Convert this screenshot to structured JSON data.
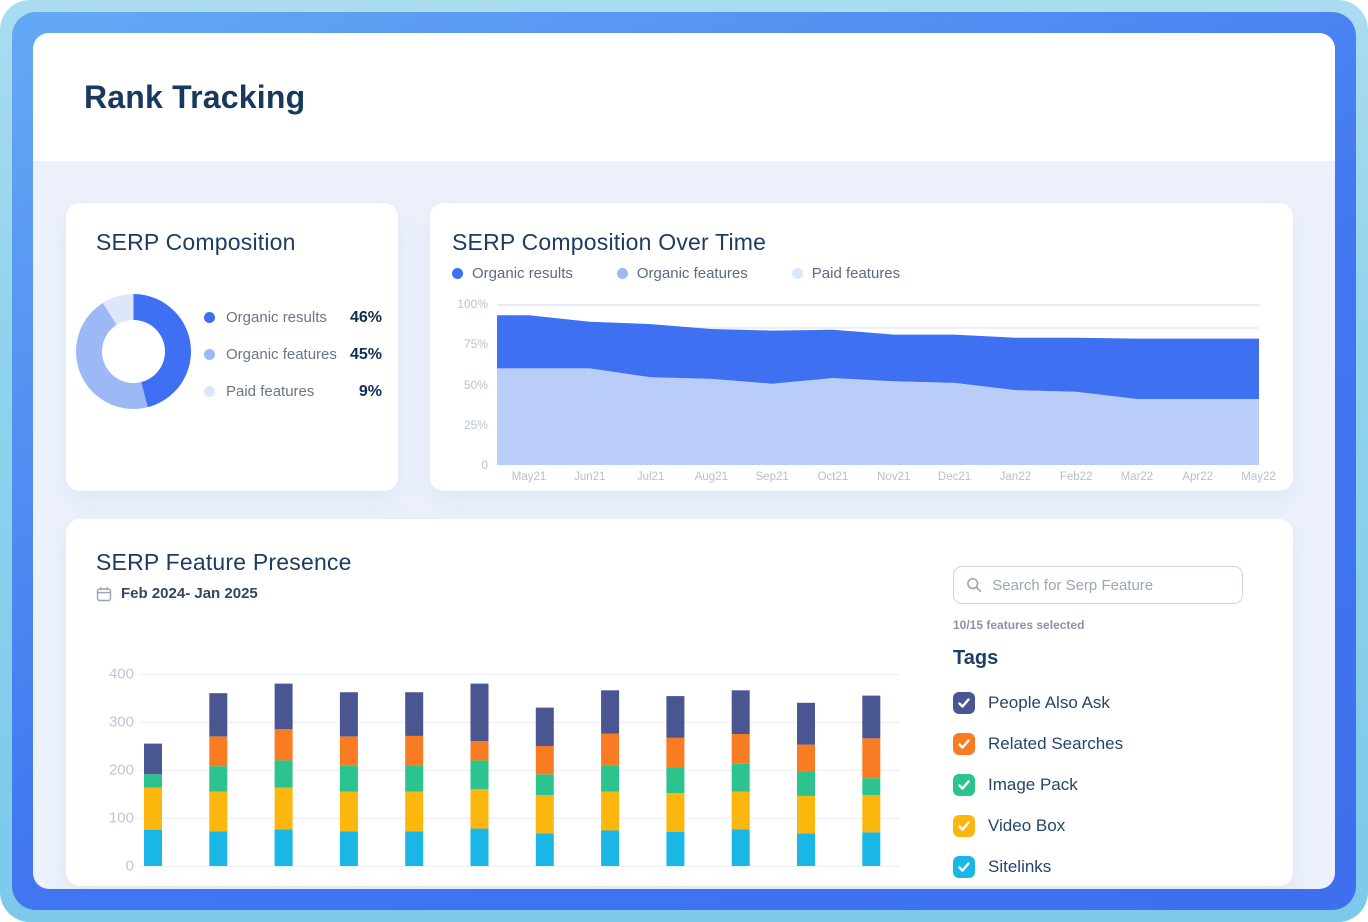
{
  "app": {
    "title": "Rank Tracking"
  },
  "serp_composition": {
    "title": "SERP Composition",
    "legend": [
      {
        "label": "Organic results",
        "value_label": "46%",
        "color": "#3f6ff2"
      },
      {
        "label": "Organic features",
        "value_label": "45%",
        "color": "#9cb9f6"
      },
      {
        "label": "Paid features",
        "value_label": "9%",
        "color": "#dce7fc"
      }
    ]
  },
  "over_time": {
    "title": "SERP Composition Over Time",
    "legend": [
      {
        "label": "Organic results",
        "color": "#3f6ff2"
      },
      {
        "label": "Organic features",
        "color": "#9cb9f6"
      },
      {
        "label": "Paid features",
        "color": "#dce7fc"
      }
    ]
  },
  "feature_presence": {
    "title": "SERP Feature Presence",
    "date_range": "Feb 2024- Jan 2025",
    "search_placeholder": "Search for Serp Feature",
    "selected_text": "10/15 features selected",
    "tags_title": "Tags",
    "tags": [
      {
        "label": "People Also Ask",
        "color": "#4a5691",
        "checked": true
      },
      {
        "label": "Related Searches",
        "color": "#f97b22",
        "checked": true
      },
      {
        "label": "Image Pack",
        "color": "#2cc48e",
        "checked": true
      },
      {
        "label": "Video Box",
        "color": "#fbb70d",
        "checked": true
      },
      {
        "label": "Sitelinks",
        "color": "#1ab7e6",
        "checked": true
      }
    ]
  },
  "chart_data": [
    {
      "type": "pie",
      "title": "SERP Composition",
      "donut": true,
      "segments": [
        {
          "label": "Organic results",
          "value": 46,
          "color": "#3f6ff2"
        },
        {
          "label": "Organic features",
          "value": 45,
          "color": "#9cb9f6"
        },
        {
          "label": "Paid features",
          "value": 9,
          "color": "#dce7fc"
        }
      ]
    },
    {
      "type": "area",
      "title": "SERP Composition Over Time",
      "stacked": true,
      "unit": "percent",
      "ylim": [
        0,
        100
      ],
      "yticks": [
        "100%",
        "75%",
        "50%",
        "25%",
        "0"
      ],
      "grid": "top line at 100% plus faint line near 85%",
      "legend_position": "top",
      "x": [
        "May21",
        "Jun21",
        "Jul21",
        "Aug21",
        "Sep21",
        "Oct21",
        "Nov21",
        "Dec21",
        "Jan22",
        "Feb22",
        "Mar22",
        "Apr22",
        "May22"
      ],
      "series": [
        {
          "name": "Organic features",
          "color": "#b9cdf8",
          "values": [
            60,
            60,
            54.5,
            53.5,
            50.5,
            54,
            52,
            51,
            46.5,
            45.5,
            41,
            41,
            41
          ]
        },
        {
          "name": "Organic results",
          "color": "#3f70f1",
          "values": [
            33,
            29,
            33,
            31,
            33,
            30,
            29,
            30,
            32.5,
            33.5,
            37.5,
            37.5,
            37.5
          ]
        }
      ],
      "legend": [
        "Organic results",
        "Organic features",
        "Paid features"
      ]
    },
    {
      "type": "bar",
      "title": "SERP Feature Presence",
      "stacked": true,
      "columns": 12,
      "x_labels_visible": false,
      "ylim": [
        0,
        400
      ],
      "yticks": [
        "400",
        "300",
        "200",
        "100",
        "0"
      ],
      "series": [
        {
          "name": "Sitelinks",
          "color": "#1ab7e6",
          "values": [
            75,
            72,
            76,
            72,
            72,
            78,
            68,
            74,
            71,
            76,
            68,
            70
          ]
        },
        {
          "name": "Video Box",
          "color": "#fbb70d",
          "values": [
            88,
            83,
            87,
            83,
            83,
            82,
            80,
            81,
            81,
            79,
            78,
            78
          ]
        },
        {
          "name": "Image Pack",
          "color": "#2cc48e",
          "values": [
            28,
            53,
            57,
            54,
            55,
            60,
            43,
            55,
            54,
            58,
            51,
            35
          ]
        },
        {
          "name": "Related Searches",
          "color": "#f97b22",
          "values": [
            0,
            62,
            65,
            61,
            61,
            40,
            59,
            66,
            61,
            62,
            56,
            83
          ]
        },
        {
          "name": "People Also Ask",
          "color": "#4a5691",
          "values": [
            64,
            90,
            95,
            92,
            91,
            120,
            80,
            90,
            87,
            91,
            87,
            89
          ]
        }
      ]
    }
  ]
}
